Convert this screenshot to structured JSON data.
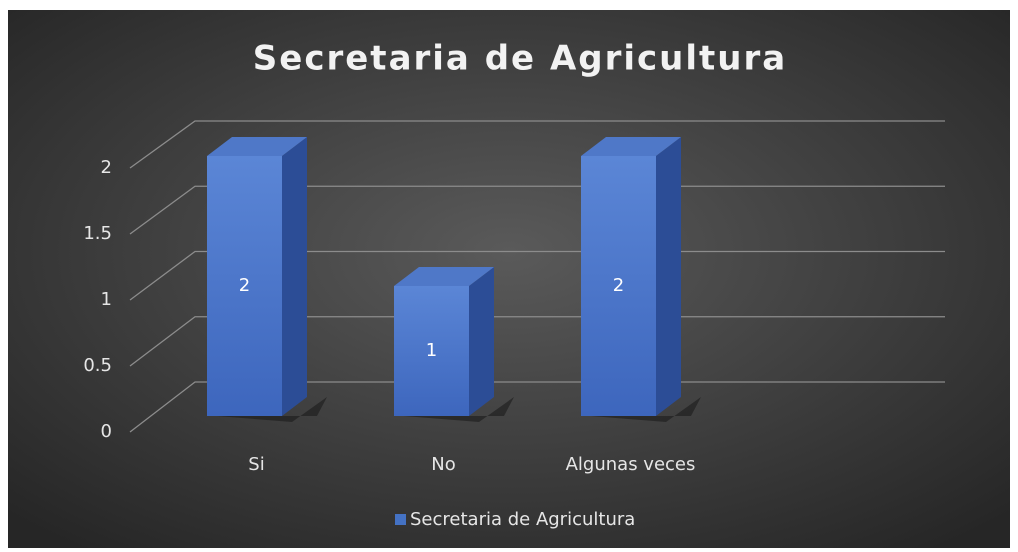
{
  "chart_data": {
    "type": "bar3d",
    "title": "Secretaria de Agricultura",
    "categories": [
      "Si",
      "No",
      "Algunas veces"
    ],
    "series": [
      {
        "name": "Secretaria de Agricultura",
        "color": "#4472c4",
        "values": [
          2,
          1,
          2
        ]
      }
    ],
    "ylim": [
      0,
      2
    ],
    "yticks": [
      0,
      0.5,
      1,
      1.5,
      2
    ],
    "grid": true,
    "legend": "bottom"
  }
}
